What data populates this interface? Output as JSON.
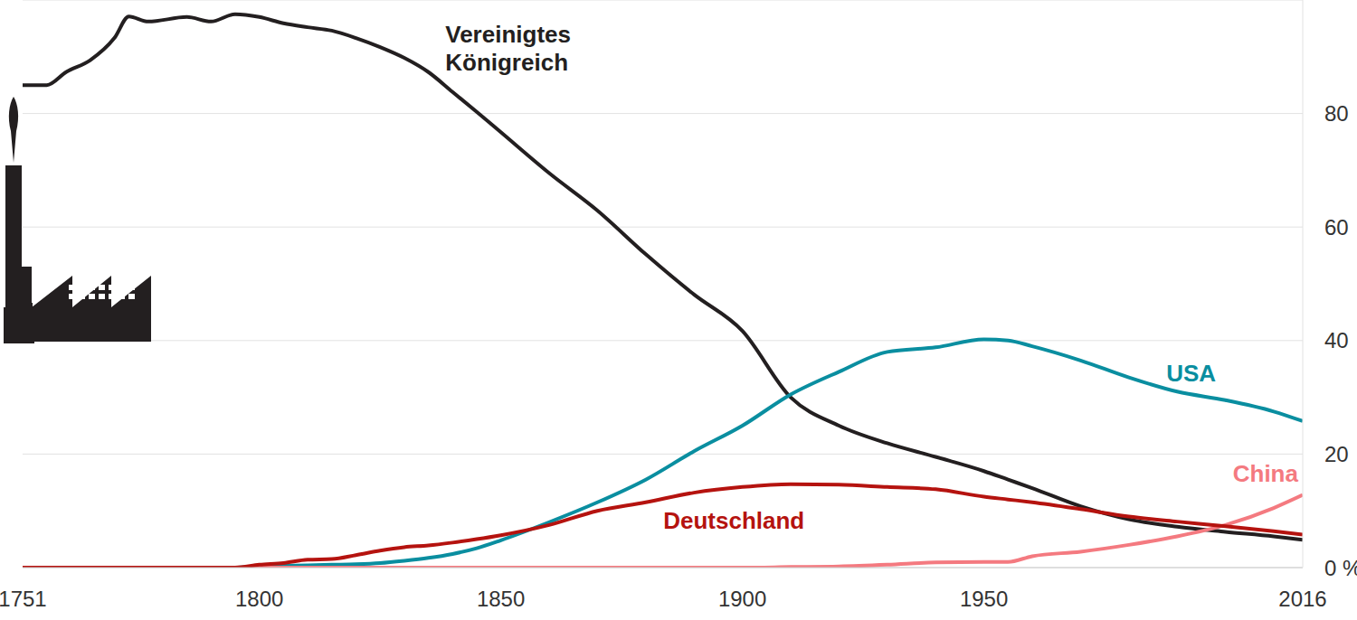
{
  "chart_data": {
    "type": "line",
    "x": [
      1751,
      1756,
      1760,
      1765,
      1770,
      1773,
      1777,
      1785,
      1790,
      1795,
      1800,
      1805,
      1810,
      1815,
      1820,
      1825,
      1830,
      1835,
      1840,
      1845,
      1850,
      1860,
      1870,
      1880,
      1890,
      1900,
      1910,
      1920,
      1930,
      1940,
      1950,
      1955,
      1960,
      1970,
      1980,
      1990,
      2000,
      2010,
      2016
    ],
    "xlim": [
      1751,
      2016
    ],
    "xticks": [
      1751,
      1800,
      1850,
      1900,
      1950,
      2016
    ],
    "ylim": [
      0,
      100
    ],
    "yticks": [
      {
        "value": 0,
        "label": "0 %"
      },
      20,
      40,
      60,
      80
    ],
    "grid": true,
    "series": [
      {
        "name": "Vereinigtes Königreich",
        "color": "#231f20",
        "values": [
          85,
          85,
          87.3,
          89.4,
          93.3,
          97.1,
          96.2,
          97,
          96.2,
          97.5,
          97,
          95.9,
          95.2,
          94.6,
          93.3,
          91.7,
          89.8,
          87.3,
          83.8,
          80.3,
          76.7,
          69.5,
          62.9,
          55.2,
          48.1,
          41.7,
          30,
          25,
          21.9,
          19.5,
          17,
          15.5,
          14,
          10.8,
          8.5,
          7.2,
          6.3,
          5.5,
          4.9
        ]
      },
      {
        "name": "USA",
        "color": "#0a8ea0",
        "values": [
          0,
          0,
          0,
          0,
          0,
          0,
          0,
          0,
          0,
          0,
          0.2,
          0.3,
          0.4,
          0.5,
          0.6,
          0.8,
          1.2,
          1.7,
          2.4,
          3.4,
          4.8,
          8,
          11.5,
          15.5,
          20.5,
          25,
          30.5,
          34.5,
          38,
          38.8,
          40.2,
          40,
          39,
          36.5,
          33.5,
          31,
          29.5,
          27.5,
          25.8
        ]
      },
      {
        "name": "China",
        "color": "#f47a80",
        "values": [
          0,
          0,
          0,
          0,
          0,
          0,
          0,
          0,
          0,
          0,
          0,
          0,
          0,
          0,
          0,
          0,
          0,
          0,
          0,
          0,
          0,
          0,
          0,
          0,
          0,
          0,
          0.1,
          0.2,
          0.5,
          0.9,
          1,
          1,
          2,
          2.8,
          4,
          5.5,
          7.5,
          10.5,
          12.8
        ]
      },
      {
        "name": "Deutschland",
        "color": "#b5130f",
        "values": [
          0,
          0,
          0,
          0,
          0,
          0,
          0,
          0,
          0,
          0,
          0.5,
          0.8,
          1.4,
          1.5,
          2.2,
          3,
          3.6,
          3.9,
          4.4,
          5,
          5.7,
          7.5,
          10,
          11.5,
          13.2,
          14.2,
          14.7,
          14.6,
          14.2,
          13.8,
          12.5,
          12,
          11.5,
          10.3,
          9,
          8.1,
          7.3,
          6.4,
          5.8
        ]
      }
    ]
  }
}
